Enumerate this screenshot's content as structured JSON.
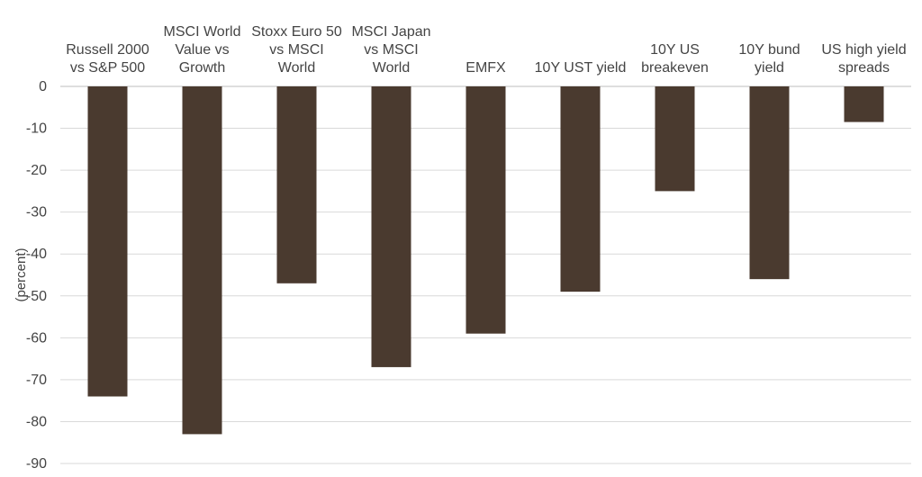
{
  "chart_data": {
    "type": "bar",
    "ylabel": "(percent)",
    "ylim": [
      -90,
      0
    ],
    "yticks": [
      "0",
      "-10",
      "-20",
      "-30",
      "-40",
      "-50",
      "-60",
      "-70",
      "-80",
      "-90"
    ],
    "grid": true,
    "bar_color": "#4a3a2f",
    "categories": [
      [
        "Russell 2000",
        "vs S&P 500"
      ],
      [
        "MSCI World",
        "Value vs",
        "Growth"
      ],
      [
        "Stoxx Euro 50",
        "vs MSCI",
        "World"
      ],
      [
        "MSCI Japan",
        "vs MSCI",
        "World"
      ],
      [
        "EMFX"
      ],
      [
        "10Y UST yield"
      ],
      [
        "10Y US",
        "breakeven"
      ],
      [
        "10Y bund",
        "yield"
      ],
      [
        "US high yield",
        "spreads"
      ]
    ],
    "values": [
      -74,
      -83,
      -47,
      -67,
      -59,
      -49,
      -25,
      -46,
      -8.5
    ]
  }
}
